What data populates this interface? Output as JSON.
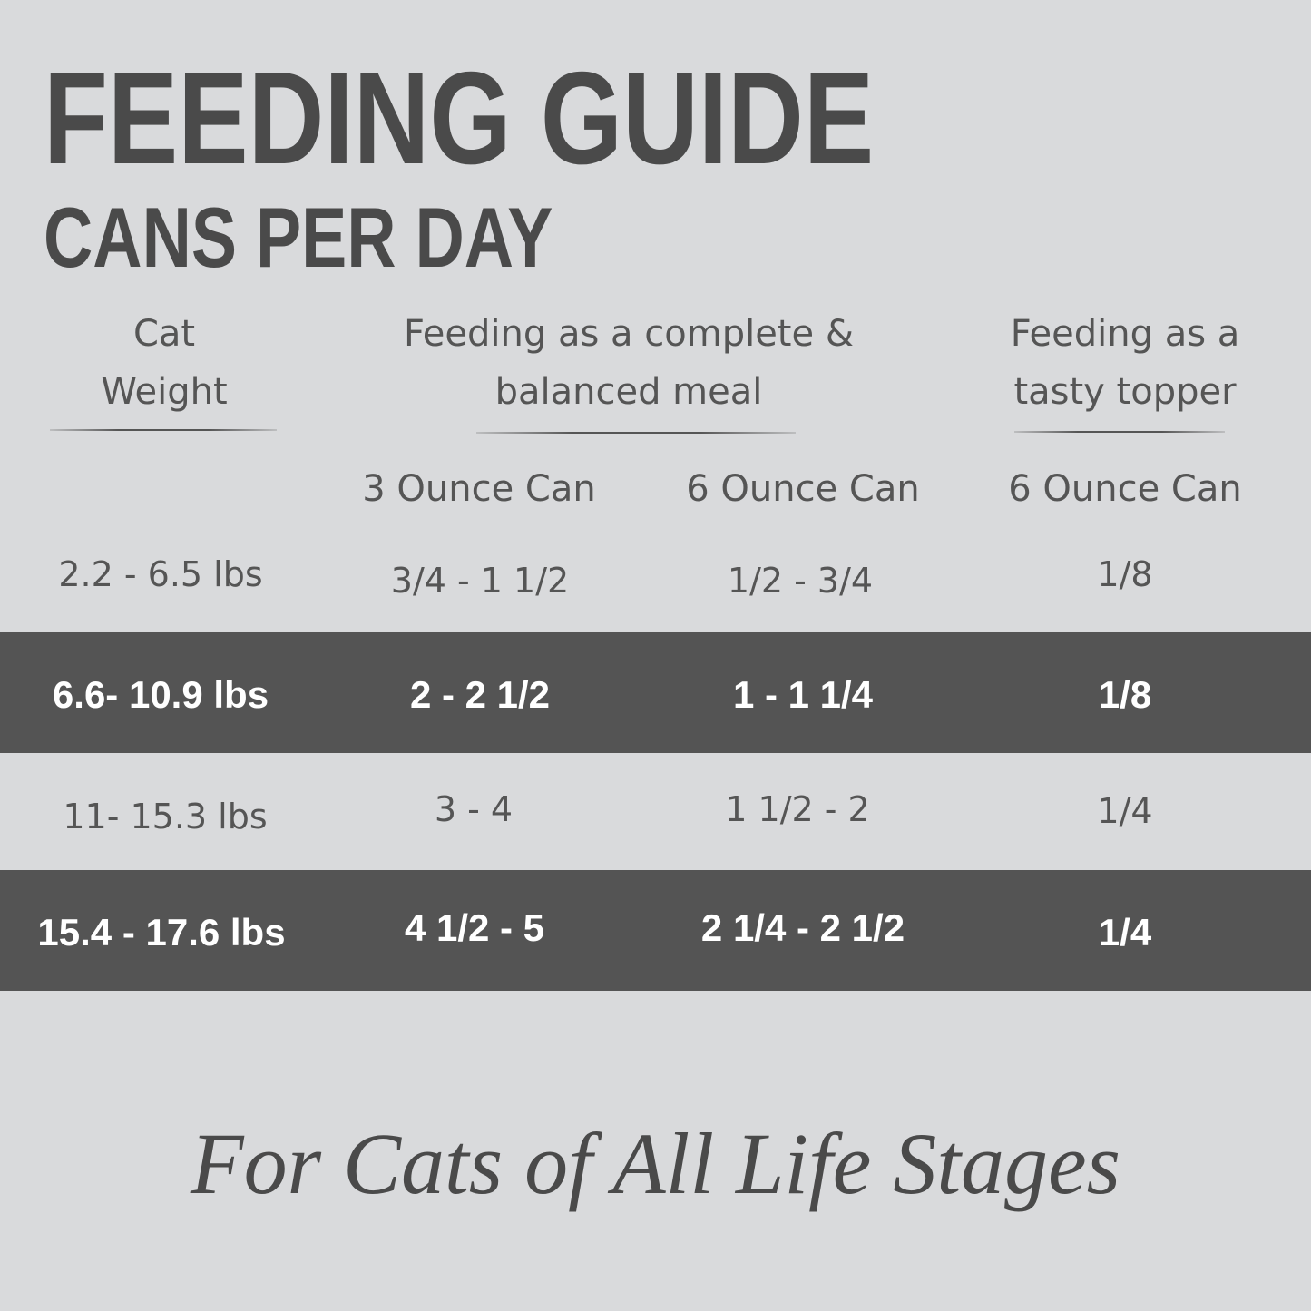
{
  "title": "FEEDING GUIDE",
  "subtitle": "CANS PER DAY",
  "headers": {
    "weight": [
      "Cat",
      "Weight"
    ],
    "complete": [
      "Feeding as a complete &",
      "balanced meal"
    ],
    "topper": [
      "Feeding as a",
      "tasty topper"
    ]
  },
  "subheaders": [
    "3 Ounce Can",
    "6 Ounce Can",
    "6 Ounce Can"
  ],
  "rows": [
    {
      "weight": "2.2 - 6.5 lbs",
      "oz3": "3/4 - 1 1/2",
      "oz6": "1/2 - 3/4",
      "topper": "1/8",
      "highlighted": false
    },
    {
      "weight": "6.6- 10.9 lbs",
      "oz3": "2 - 2 1/2",
      "oz6": "1 - 1 1/4",
      "topper": "1/8",
      "highlighted": true
    },
    {
      "weight": "11- 15.3 lbs",
      "oz3": "3 - 4",
      "oz6": "1 1/2 - 2",
      "topper": "1/4",
      "highlighted": false
    },
    {
      "weight": "15.4 - 17.6 lbs",
      "oz3": "4 1/2 - 5",
      "oz6": "2 1/4 - 2 1/2",
      "topper": "1/4",
      "highlighted": true
    }
  ],
  "tagline": "For Cats of All Life Stages",
  "colors": {
    "background": "#d9dadc",
    "band": "#545454",
    "text": "#4a4a4a"
  }
}
